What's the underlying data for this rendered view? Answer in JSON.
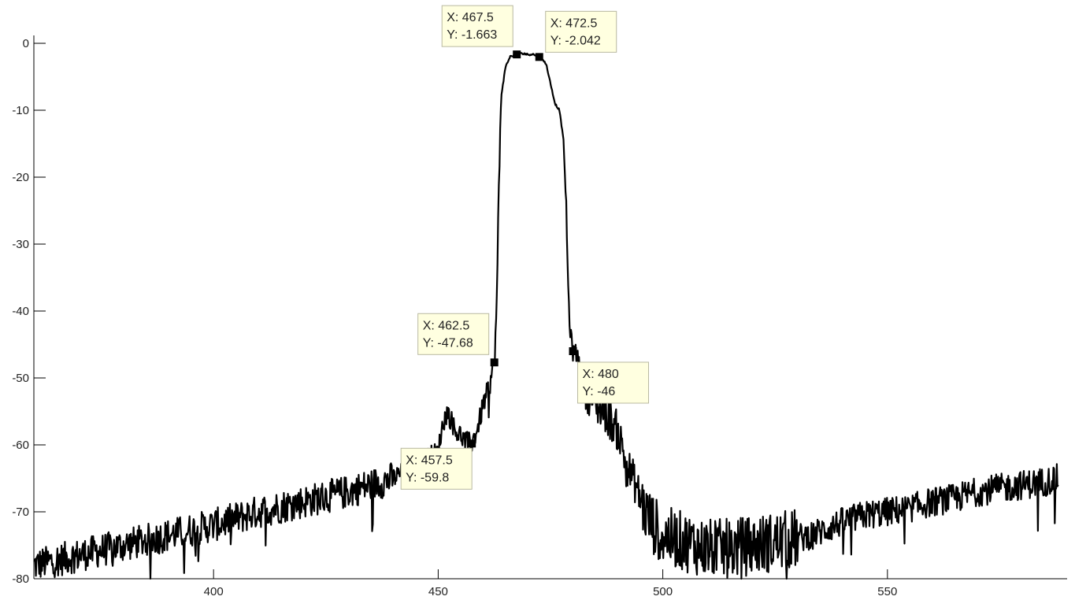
{
  "chart_data": {
    "type": "line",
    "title": "",
    "xlabel": "",
    "ylabel": "",
    "xlim": [
      360,
      590
    ],
    "ylim": [
      -80,
      0
    ],
    "x_ticks": [
      {
        "value": 400,
        "label": "400"
      },
      {
        "value": 450,
        "label": "450"
      },
      {
        "value": 500,
        "label": "500"
      },
      {
        "value": 550,
        "label": "550"
      }
    ],
    "y_ticks": [
      {
        "value": 0,
        "label": "0"
      },
      {
        "value": -10,
        "label": "-10"
      },
      {
        "value": -20,
        "label": "-20"
      },
      {
        "value": -30,
        "label": "-30"
      },
      {
        "value": -40,
        "label": "-40"
      },
      {
        "value": -50,
        "label": "-50"
      },
      {
        "value": -60,
        "label": "-60"
      },
      {
        "value": -70,
        "label": "-70"
      },
      {
        "value": -80,
        "label": "-80"
      }
    ],
    "grid": false,
    "line_color": "#000000",
    "series": [
      {
        "x": [
          360,
          370,
          380,
          390,
          400,
          410,
          420,
          430,
          440,
          445,
          450,
          451,
          452,
          453,
          454,
          455,
          456,
          457.5,
          459,
          460,
          461,
          461.5,
          462,
          462.5,
          463,
          463.5,
          464,
          465,
          466,
          467.5,
          469,
          470,
          471,
          472.5,
          474,
          475,
          476,
          477,
          478,
          478.5,
          479,
          479.5,
          480,
          481,
          482,
          483,
          485,
          487,
          490,
          492,
          494,
          496,
          498,
          500,
          505,
          510,
          515,
          520,
          525,
          530,
          535,
          540,
          545,
          550,
          555,
          560,
          565,
          570,
          575,
          580,
          585,
          588
        ],
        "y": [
          -78,
          -76.5,
          -75,
          -73.5,
          -72,
          -70,
          -68.5,
          -67,
          -65,
          -63,
          -61,
          -57,
          -55,
          -56.5,
          -58,
          -58.5,
          -59.5,
          -59.8,
          -57,
          -54,
          -52,
          -51,
          -49,
          -47.68,
          -40,
          -22,
          -8,
          -3.5,
          -2,
          -1.663,
          -1.5,
          -1.7,
          -1.6,
          -2.042,
          -3,
          -6,
          -9,
          -10,
          -15,
          -25,
          -38,
          -44,
          -46,
          -46.5,
          -50,
          -52,
          -54,
          -55,
          -58,
          -63,
          -66,
          -70,
          -72,
          -73.5,
          -74.5,
          -75.5,
          -75.5,
          -75,
          -74.5,
          -74,
          -73,
          -71.5,
          -70.5,
          -70,
          -69.5,
          -68.5,
          -68,
          -67,
          -66.5,
          -66,
          -65.5,
          -65
        ]
      }
    ],
    "data_tips": [
      {
        "x": 467.5,
        "y": -1.663,
        "label_x": "X: 467.5",
        "label_y": "Y: -1.663"
      },
      {
        "x": 472.5,
        "y": -2.042,
        "label_x": "X: 472.5",
        "label_y": "Y: -2.042"
      },
      {
        "x": 462.5,
        "y": -47.68,
        "label_x": "X: 462.5",
        "label_y": "Y: -47.68"
      },
      {
        "x": 480,
        "y": -46,
        "label_x": "X: 480",
        "label_y": "Y: -46"
      },
      {
        "x": 457.5,
        "y": -59.8,
        "label_x": "X: 457.5",
        "label_y": "Y: -59.8"
      }
    ]
  }
}
